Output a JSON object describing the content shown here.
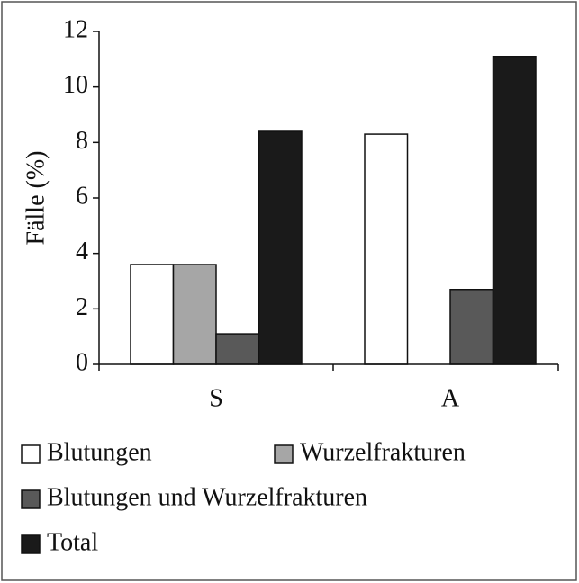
{
  "chart_data": {
    "type": "bar",
    "y_label": "Fälle (%)",
    "categories": [
      "S",
      "A"
    ],
    "series": [
      {
        "name": "Blutungen",
        "color": "#ffffff",
        "values": [
          3.6,
          8.3
        ]
      },
      {
        "name": "Wurzelfrakturen",
        "color": "#a6a6a6",
        "values": [
          3.6,
          0
        ]
      },
      {
        "name": "Blutungen und Wurzelfrakturen",
        "color": "#595959",
        "values": [
          1.1,
          2.7
        ]
      },
      {
        "name": "Total",
        "color": "#1a1a1a",
        "values": [
          8.4,
          11.1
        ]
      }
    ],
    "ylim": [
      0,
      12
    ],
    "yticks": [
      0,
      2,
      4,
      6,
      8,
      10,
      12
    ]
  }
}
